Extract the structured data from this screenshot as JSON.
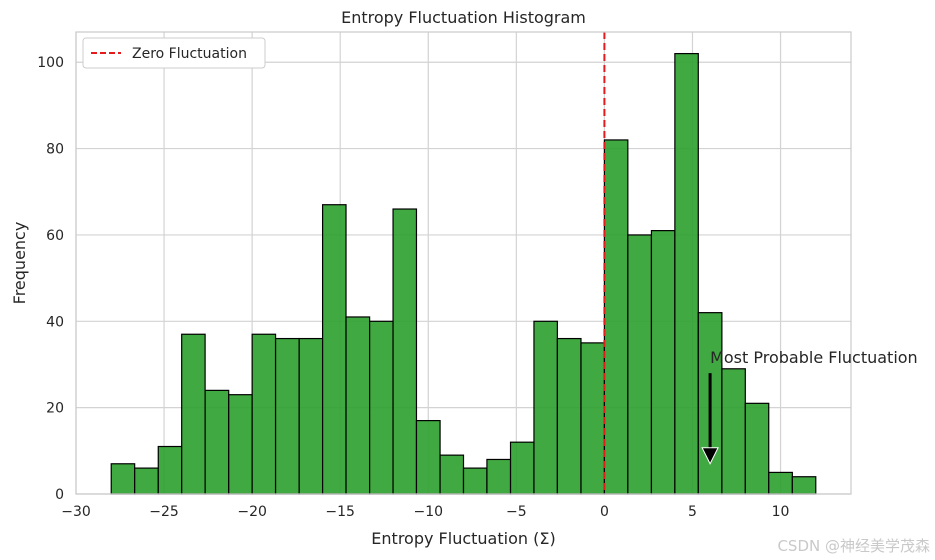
{
  "chart_data": {
    "type": "bar",
    "title": "Entropy Fluctuation Histogram",
    "xlabel": "Entropy Fluctuation (Σ)",
    "ylabel": "Frequency",
    "xlim": [
      -30,
      14
    ],
    "ylim": [
      0,
      107
    ],
    "xticks": [
      -30,
      -25,
      -20,
      -15,
      -10,
      -5,
      0,
      5,
      10
    ],
    "xtick_labels": [
      "−30",
      "−25",
      "−20",
      "−15",
      "−10",
      "−5",
      "0",
      "5",
      "10"
    ],
    "yticks": [
      0,
      20,
      40,
      60,
      80,
      100
    ],
    "grid": true,
    "bin_edges": [
      -28.0,
      -26.67,
      -25.33,
      -24.0,
      -22.67,
      -21.33,
      -20.0,
      -18.67,
      -17.33,
      -16.0,
      -14.67,
      -13.33,
      -12.0,
      -10.67,
      -9.33,
      -8.0,
      -6.67,
      -5.33,
      -4.0,
      -2.67,
      -1.33,
      0.0,
      1.33,
      2.67,
      4.0,
      5.33,
      6.67,
      8.0,
      9.33,
      10.67,
      12.0
    ],
    "values": [
      7,
      6,
      11,
      37,
      24,
      23,
      37,
      36,
      36,
      67,
      41,
      40,
      66,
      17,
      9,
      6,
      8,
      12,
      40,
      36,
      35,
      82,
      60,
      61,
      102,
      42,
      29,
      21,
      5,
      4
    ],
    "bar_color": "#2ca02c",
    "edge_color": "#000000",
    "reference_line": {
      "x": 0,
      "label": "Zero Fluctuation",
      "color": "#e41a1c",
      "style": "dashed"
    },
    "legend": {
      "position": "top-left",
      "entries": [
        "Zero Fluctuation"
      ]
    },
    "annotation": {
      "text": "Most Probable Fluctuation",
      "arrow_from": [
        6,
        28
      ],
      "arrow_to": [
        6,
        7
      ]
    }
  },
  "watermark": "CSDN @神经美学茂森"
}
